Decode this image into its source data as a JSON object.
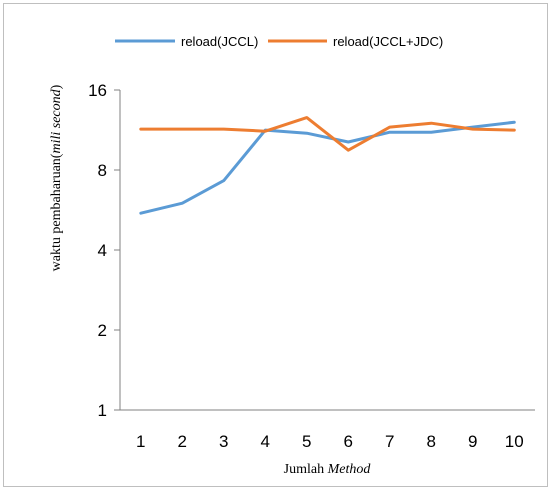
{
  "chart_data": {
    "type": "line",
    "x": [
      1,
      2,
      3,
      4,
      5,
      6,
      7,
      8,
      9,
      10
    ],
    "xtick_labels": [
      "1",
      "2",
      "3",
      "4",
      "5",
      "6",
      "7",
      "8",
      "9",
      "10"
    ],
    "series": [
      {
        "name": "reload(JCCL)",
        "color": "#5b9bd5",
        "values": [
          5.5,
          6.0,
          7.3,
          11.3,
          11.0,
          10.2,
          11.1,
          11.1,
          11.6,
          12.1
        ]
      },
      {
        "name": "reload(JCCL+JDC)",
        "color": "#ed7d31",
        "values": [
          11.4,
          11.4,
          11.4,
          11.2,
          12.6,
          9.5,
          11.6,
          12.0,
          11.4,
          11.3
        ]
      }
    ],
    "yscale": "log2",
    "ylim": [
      1,
      16
    ],
    "yticks": [
      1,
      2,
      4,
      8,
      16
    ],
    "ytick_labels": [
      "1",
      "2",
      "4",
      "8",
      "16"
    ],
    "xlabel_parts": [
      {
        "text": "Jumlah ",
        "italic": false
      },
      {
        "text": "Method",
        "italic": true
      }
    ],
    "ylabel_parts": [
      {
        "text": "waktu pembaharuan(",
        "italic": false
      },
      {
        "text": "mili second",
        "italic": true
      },
      {
        "text": ")",
        "italic": false
      }
    ],
    "legend_position": "top",
    "grid": false
  }
}
